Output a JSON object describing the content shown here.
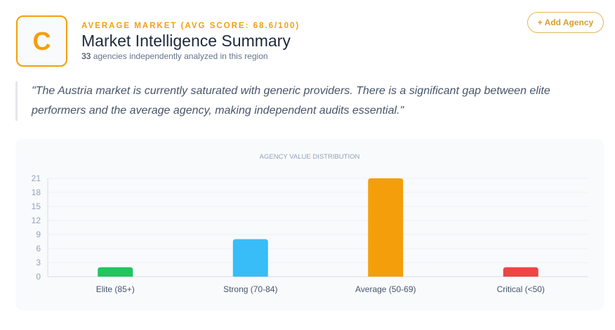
{
  "header": {
    "grade": "C",
    "eyebrow": "AVERAGE MARKET (AVG SCORE: 68.6/100)",
    "title": "Market Intelligence Summary",
    "count": "33",
    "subtitle": " agencies independently analyzed in this region",
    "add_button": "+ Add Agency"
  },
  "quote": "\"The Austria market is currently saturated with generic providers. There is a significant gap between elite performers and the average agency, making independent audits essential.\"",
  "colors": {
    "accent": "#f59e0b"
  },
  "chart_data": {
    "type": "bar",
    "title": "AGENCY VALUE DISTRIBUTION",
    "categories": [
      "Elite (85+)",
      "Strong (70-84)",
      "Average (50-69)",
      "Critical (<50)"
    ],
    "values": [
      2,
      8,
      21,
      2
    ],
    "colors": [
      "#22c55e",
      "#38bdf8",
      "#f59e0b",
      "#ef4444"
    ],
    "ylim": [
      0,
      21
    ],
    "yticks": [
      0,
      3,
      6,
      9,
      12,
      15,
      18,
      21
    ],
    "grid": true,
    "xlabel": "",
    "ylabel": ""
  }
}
